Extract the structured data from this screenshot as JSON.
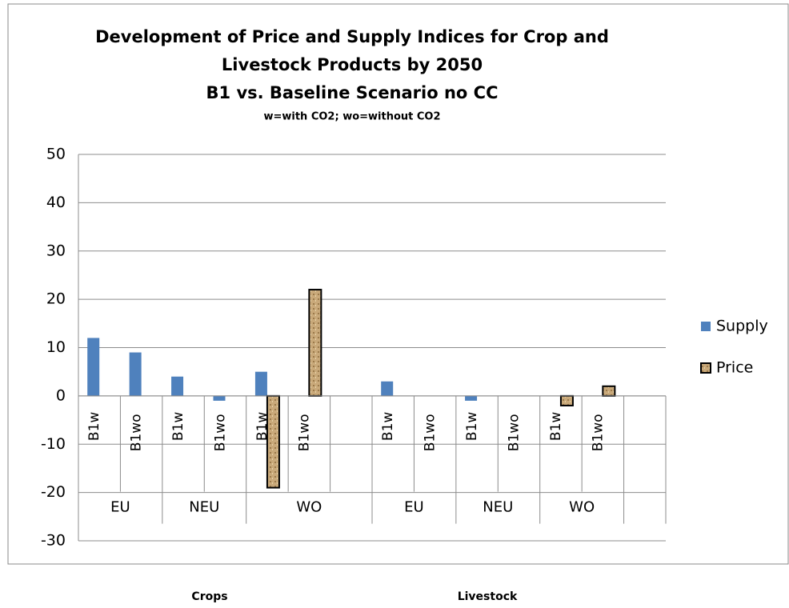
{
  "chart_data": {
    "type": "bar",
    "title": [
      "Development of Price and Supply Indices for Crop and",
      "Livestock Products by 2050",
      "B1 vs. Baseline Scenario no CC"
    ],
    "subtitle": "w=with CO2; wo=without CO2",
    "categories": [
      "B1w",
      "B1wo",
      "B1w",
      "B1wo",
      "B1w",
      "B1wo",
      null,
      "B1w",
      "B1wo",
      "B1w",
      "B1wo",
      "B1w",
      "B1wo",
      null
    ],
    "groups": [
      {
        "label": "EU",
        "count": 2
      },
      {
        "label": "NEU",
        "count": 2
      },
      {
        "label": "WO",
        "count": 3
      },
      {
        "label": "EU",
        "count": 2
      },
      {
        "label": "NEU",
        "count": 2
      },
      {
        "label": "WO",
        "count": 2
      },
      {
        "label": null,
        "count": 1
      }
    ],
    "series": [
      {
        "name": "Supply",
        "color": "#4f81bd",
        "values": [
          12,
          9,
          4,
          -1,
          5,
          0,
          null,
          3,
          0,
          -1,
          0,
          0,
          0,
          null
        ]
      },
      {
        "name": "Price",
        "color": "#c9a97a",
        "values": [
          0,
          0,
          0,
          0,
          -19,
          22,
          null,
          0,
          0,
          0,
          0,
          -2,
          2,
          null
        ]
      }
    ],
    "ylim": [
      -30,
      50
    ],
    "yticks": [
      -30,
      -20,
      -10,
      0,
      10,
      20,
      30,
      40,
      50
    ],
    "grid": true,
    "legend": "right",
    "sections": [
      "Crops",
      "Livestock"
    ]
  }
}
